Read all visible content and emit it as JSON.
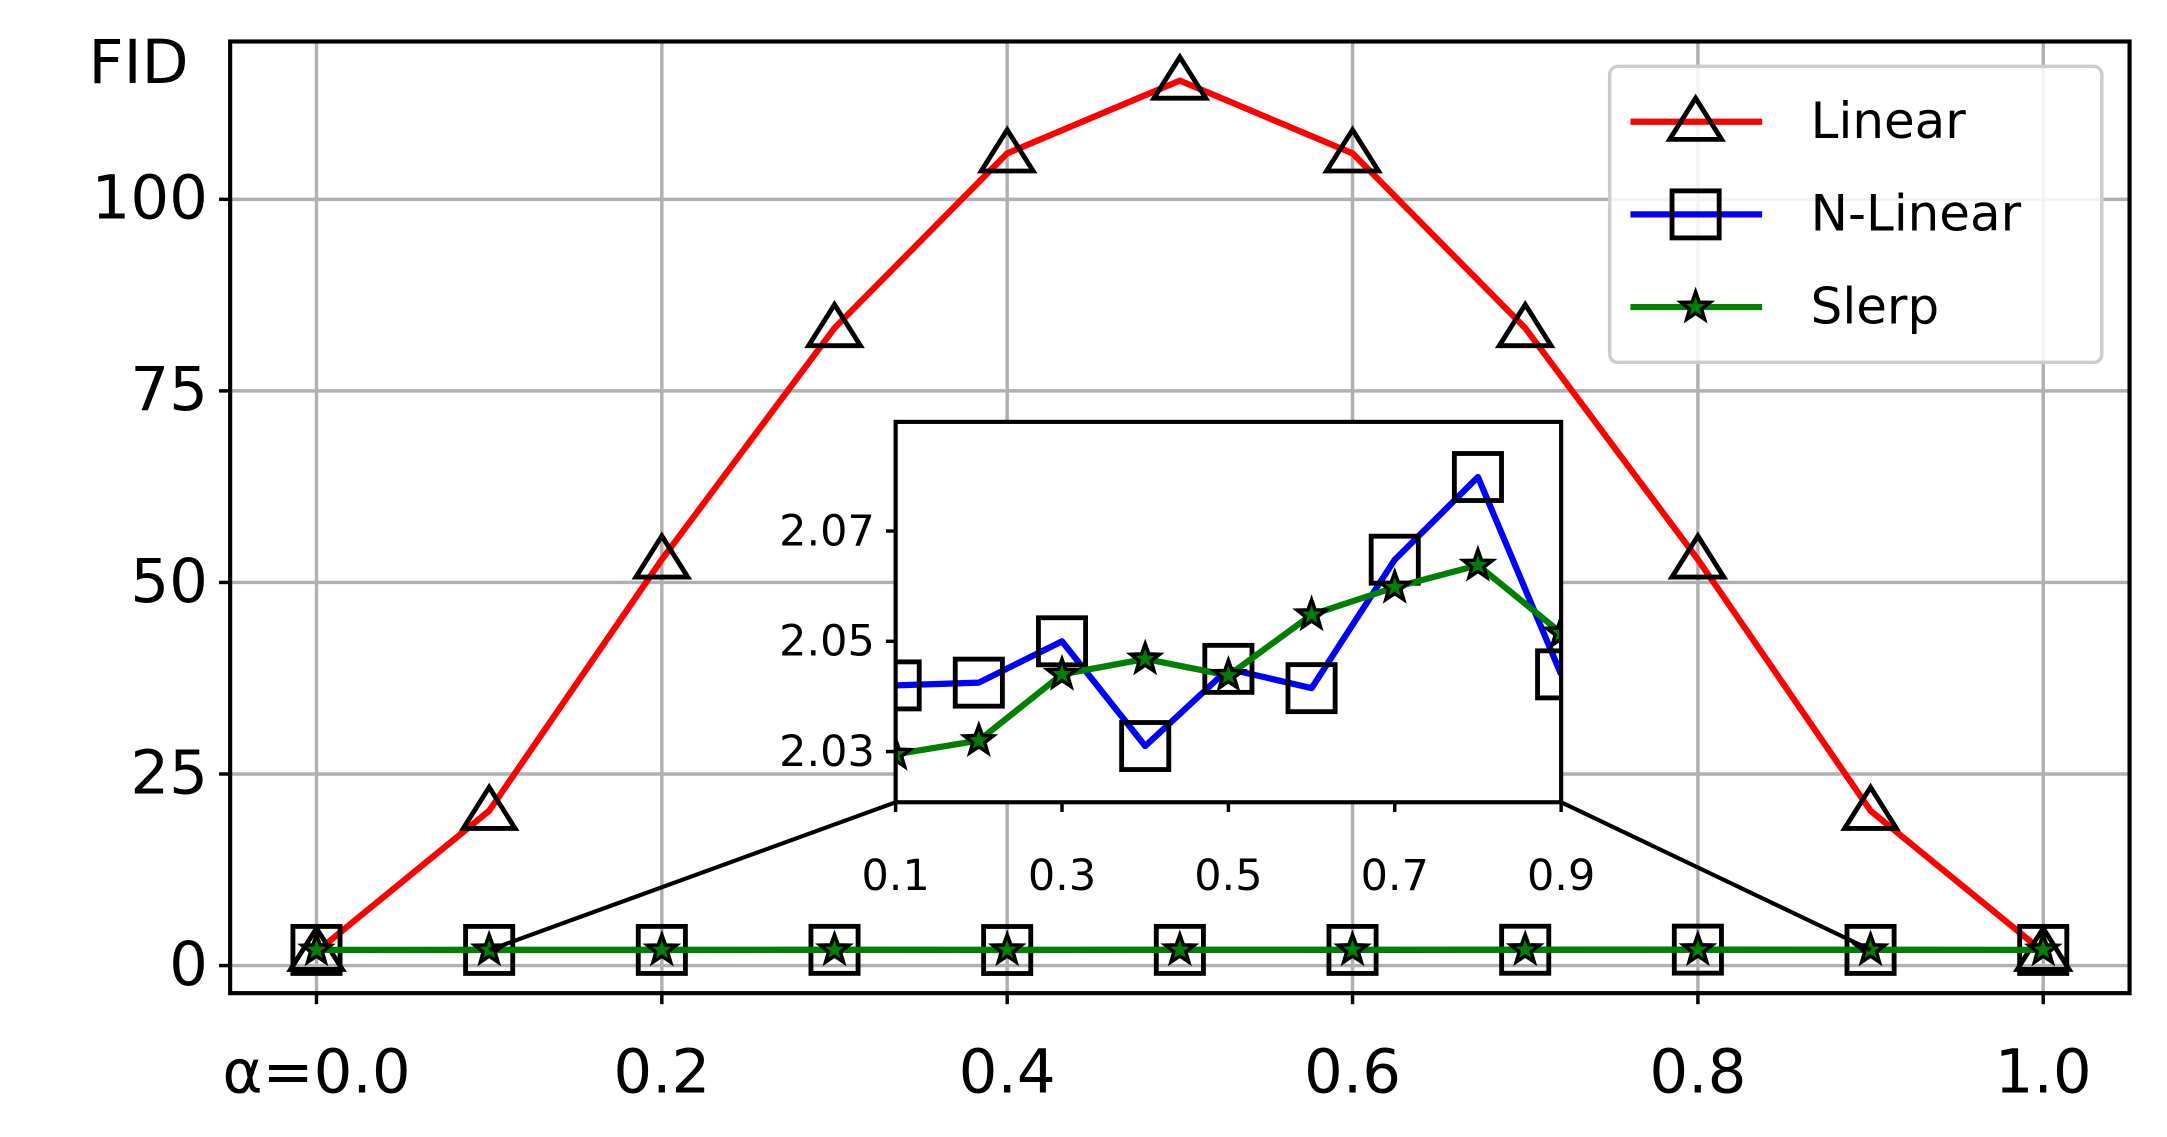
{
  "chart_data": [
    {
      "type": "line",
      "ylabel": "FID",
      "x": [
        0.0,
        0.1,
        0.2,
        0.3,
        0.4,
        0.5,
        0.6,
        0.7,
        0.8,
        0.9,
        1.0
      ],
      "xlim": [
        -0.05,
        1.05
      ],
      "ylim": [
        -3.6,
        120.6
      ],
      "xticks": [
        {
          "value": 0,
          "label": "α=0.0"
        },
        0.2,
        0.4,
        0.6,
        0.8,
        {
          "value": 1,
          "label": "1.0"
        }
      ],
      "yticks": [
        0,
        25,
        50,
        75,
        100
      ],
      "grid": true,
      "legend": "upper right",
      "series": [
        {
          "name": "Linear",
          "color": "#ff0000",
          "marker": "triangle",
          "values": [
            1.8,
            20.2,
            53,
            83.2,
            106,
            115.5,
            106,
            83.2,
            53,
            20.2,
            1.8
          ]
        },
        {
          "name": "N-Linear",
          "color": "#0000ff",
          "marker": "square",
          "values": [
            2.04,
            2.042,
            2.0425,
            2.05,
            2.031,
            2.045,
            2.0415,
            2.0648,
            2.0798,
            2.044,
            2.04
          ]
        },
        {
          "name": "Slerp",
          "color": "#008000",
          "marker": "star",
          "values": [
            2.04,
            2.0295,
            2.032,
            2.044,
            2.0468,
            2.0438,
            2.0548,
            2.0598,
            2.0638,
            2.0515,
            2.04
          ]
        }
      ]
    },
    {
      "type": "line",
      "x": [
        0.1,
        0.2,
        0.3,
        0.4,
        0.5,
        0.6,
        0.7,
        0.8,
        0.9
      ],
      "xlim": [
        0.1,
        0.9
      ],
      "ylim": [
        2.0208,
        2.0898
      ],
      "xticks": [
        0.1,
        0.3,
        0.5,
        0.7,
        0.9
      ],
      "yticks": [
        2.03,
        2.05,
        2.07
      ],
      "series": [
        {
          "color": "#0000ff",
          "marker": "square",
          "values": [
            2.042,
            2.0425,
            2.05,
            2.031,
            2.045,
            2.0415,
            2.0648,
            2.0798,
            2.044
          ]
        },
        {
          "color": "#008000",
          "marker": "star",
          "values": [
            2.0295,
            2.032,
            2.044,
            2.0468,
            2.0438,
            2.0548,
            2.0598,
            2.0638,
            2.0515
          ]
        }
      ]
    }
  ]
}
